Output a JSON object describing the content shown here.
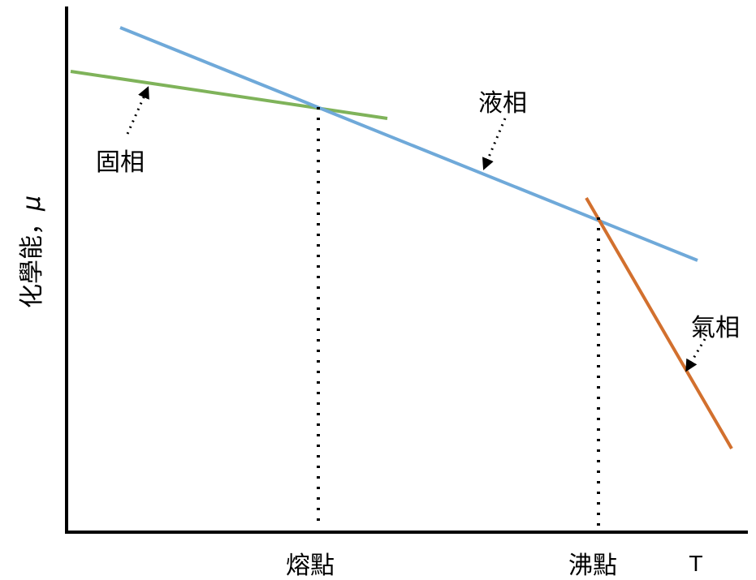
{
  "diagram": {
    "y_axis_label": "化學能，",
    "y_axis_symbol": "μ",
    "x_axis_label": "T",
    "x_ticks": {
      "melting": "熔點",
      "boiling": "沸點"
    },
    "phases": {
      "solid": {
        "label": "固相",
        "color": "#7fb35a"
      },
      "liquid": {
        "label": "液相",
        "color": "#6fa9d9"
      },
      "gas": {
        "label": "氣相",
        "color": "#d2702e"
      }
    },
    "axis_color": "#000000"
  }
}
